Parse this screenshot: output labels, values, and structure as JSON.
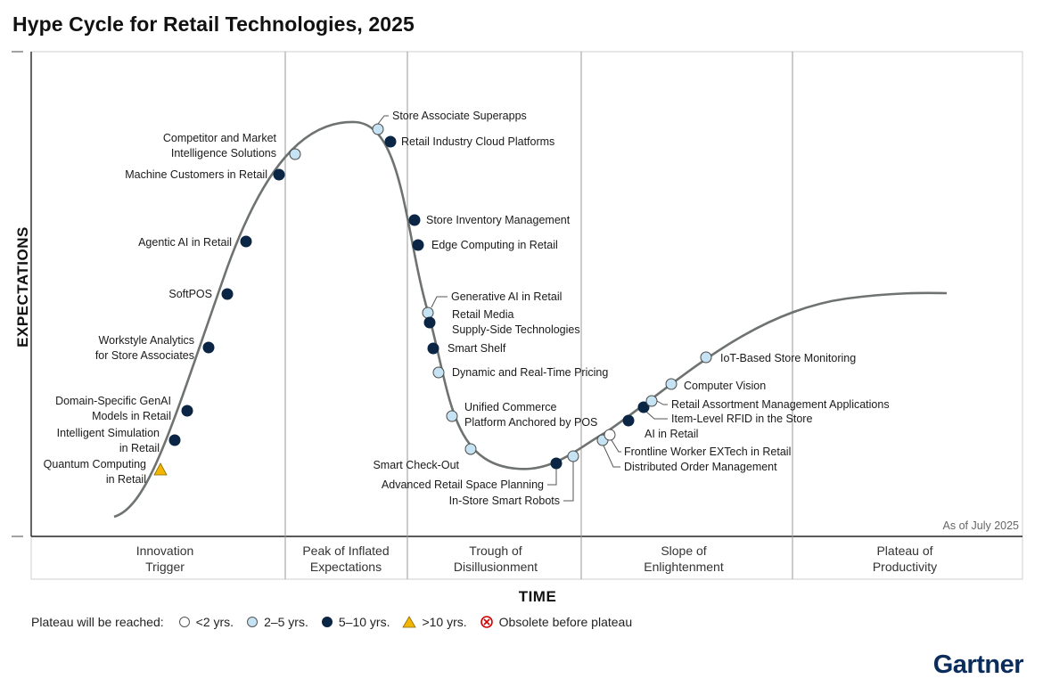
{
  "title": "Hype Cycle for Retail Technologies, 2025",
  "y_axis_label": "EXPECTATIONS",
  "x_axis_label": "TIME",
  "as_of": "As of July 2025",
  "brand": "Gartner",
  "phases": [
    {
      "lines": [
        "Innovation",
        "Trigger"
      ]
    },
    {
      "lines": [
        "Peak of Inflated",
        "Expectations"
      ]
    },
    {
      "lines": [
        "Trough of",
        "Disillusionment"
      ]
    },
    {
      "lines": [
        "Slope of",
        "Enlightenment"
      ]
    },
    {
      "lines": [
        "Plateau of",
        "Productivity"
      ]
    }
  ],
  "legend": {
    "lead": "Plateau will be reached:",
    "items": [
      {
        "key": "lt2",
        "label": "<2 yrs."
      },
      {
        "key": "2to5",
        "label": "2–5 yrs."
      },
      {
        "key": "5to10",
        "label": "5–10 yrs."
      },
      {
        "key": "gt10",
        "label": ">10 yrs."
      },
      {
        "key": "obsolete",
        "label": "Obsolete before plateau"
      }
    ]
  },
  "colors": {
    "lt2": "#ffffff",
    "2to5": "#c5e3f2",
    "5to10": "#0b2545",
    "gt10": "#f2b600",
    "obsolete": "#d10000",
    "curve": "#6e7370",
    "grid": "#9a9a9a"
  },
  "chart_data": {
    "type": "hype-cycle",
    "title": "Hype Cycle for Retail Technologies, 2025",
    "xlabel": "TIME",
    "ylabel": "EXPECTATIONS",
    "phases": [
      "Innovation Trigger",
      "Peak of Inflated Expectations",
      "Trough of Disillusionment",
      "Slope of Enlightenment",
      "Plateau of Productivity"
    ],
    "technologies": [
      {
        "name": [
          "Quantum Computing",
          "in Retail"
        ],
        "phase": "Innovation Trigger",
        "plateau": "gt10"
      },
      {
        "name": [
          "Intelligent Simulation",
          "in Retail"
        ],
        "phase": "Innovation Trigger",
        "plateau": "5to10"
      },
      {
        "name": [
          "Domain-Specific GenAI",
          "Models in Retail"
        ],
        "phase": "Innovation Trigger",
        "plateau": "5to10"
      },
      {
        "name": [
          "Workstyle Analytics",
          "for Store Associates"
        ],
        "phase": "Innovation Trigger",
        "plateau": "5to10"
      },
      {
        "name": [
          "SoftPOS"
        ],
        "phase": "Innovation Trigger",
        "plateau": "5to10"
      },
      {
        "name": [
          "Agentic AI in Retail"
        ],
        "phase": "Innovation Trigger",
        "plateau": "5to10"
      },
      {
        "name": [
          "Machine Customers in Retail"
        ],
        "phase": "Innovation Trigger",
        "plateau": "5to10"
      },
      {
        "name": [
          "Competitor and Market",
          "Intelligence Solutions"
        ],
        "phase": "Peak of Inflated Expectations",
        "plateau": "2to5"
      },
      {
        "name": [
          "Store Associate Superapps"
        ],
        "phase": "Peak of Inflated Expectations",
        "plateau": "2to5"
      },
      {
        "name": [
          "Retail Industry Cloud Platforms"
        ],
        "phase": "Peak of Inflated Expectations",
        "plateau": "5to10"
      },
      {
        "name": [
          "Store Inventory Management"
        ],
        "phase": "Trough of Disillusionment",
        "plateau": "5to10"
      },
      {
        "name": [
          "Edge Computing in Retail"
        ],
        "phase": "Trough of Disillusionment",
        "plateau": "5to10"
      },
      {
        "name": [
          "Generative AI in Retail"
        ],
        "phase": "Trough of Disillusionment",
        "plateau": "2to5"
      },
      {
        "name": [
          "Retail Media",
          "Supply-Side Technologies"
        ],
        "phase": "Trough of Disillusionment",
        "plateau": "5to10"
      },
      {
        "name": [
          "Smart Shelf"
        ],
        "phase": "Trough of Disillusionment",
        "plateau": "5to10"
      },
      {
        "name": [
          "Dynamic and Real-Time Pricing"
        ],
        "phase": "Trough of Disillusionment",
        "plateau": "2to5"
      },
      {
        "name": [
          "Unified Commerce",
          "Platform Anchored by POS"
        ],
        "phase": "Trough of Disillusionment",
        "plateau": "2to5"
      },
      {
        "name": [
          "Smart Check-Out"
        ],
        "phase": "Trough of Disillusionment",
        "plateau": "2to5"
      },
      {
        "name": [
          "Advanced Retail Space Planning"
        ],
        "phase": "Trough of Disillusionment",
        "plateau": "5to10"
      },
      {
        "name": [
          "In-Store Smart Robots"
        ],
        "phase": "Trough of Disillusionment",
        "plateau": "2to5"
      },
      {
        "name": [
          "Distributed Order Management"
        ],
        "phase": "Slope of Enlightenment",
        "plateau": "2to5"
      },
      {
        "name": [
          "Frontline Worker EXTech in Retail"
        ],
        "phase": "Slope of Enlightenment",
        "plateau": "lt2"
      },
      {
        "name": [
          "AI in Retail"
        ],
        "phase": "Slope of Enlightenment",
        "plateau": "5to10"
      },
      {
        "name": [
          "Item-Level RFID in the Store"
        ],
        "phase": "Slope of Enlightenment",
        "plateau": "5to10"
      },
      {
        "name": [
          "Retail Assortment Management Applications"
        ],
        "phase": "Slope of Enlightenment",
        "plateau": "2to5"
      },
      {
        "name": [
          "Computer Vision"
        ],
        "phase": "Slope of Enlightenment",
        "plateau": "2to5"
      },
      {
        "name": [
          "IoT-Based Store Monitoring"
        ],
        "phase": "Slope of Enlightenment",
        "plateau": "2to5"
      }
    ]
  }
}
